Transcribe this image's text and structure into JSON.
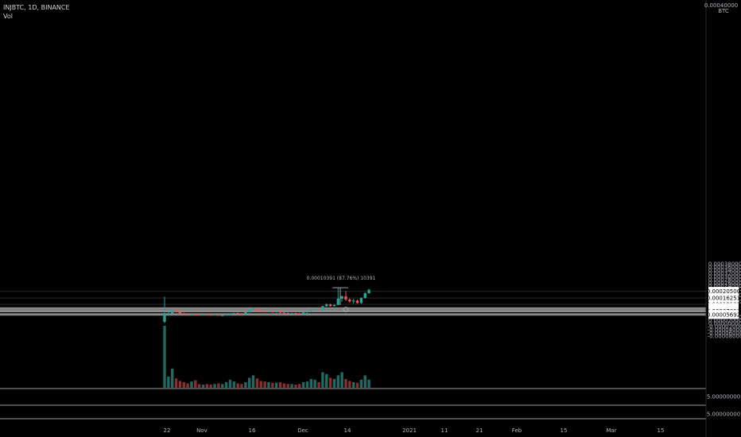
{
  "header": {
    "symbol_line": "INJBTC, 1D, BINANCE",
    "volume_label": "Vol"
  },
  "price_axis": {
    "currency": "BTC",
    "top_label": "0.00040000",
    "labels": [
      "0.00038000",
      "0.00036000",
      "0.00034000",
      "0.00032000",
      "0.00030000",
      "0.00028000",
      "0.00026000",
      "0.00024000",
      "0.00022000",
      "0.00018000",
      "0.00014000",
      "0.00004000",
      "0.00002000",
      "0.00000000",
      "-0.00002000",
      "-0.00004000",
      "-0.00006000",
      "-0.00008000"
    ],
    "tags": [
      {
        "text": "0.00020500",
        "value": 0.000205
      },
      {
        "text": "0.00016251",
        "value": 0.00016251
      },
      {
        "text": "0.00012183",
        "value": 0.00012183
      },
      {
        "text": "0.00010183",
        "value": 0.00010183
      },
      {
        "text": "0.00009447",
        "value": 9.447e-05
      },
      {
        "text": "0.00007890",
        "value": 7.89e-05
      },
      {
        "text": "0.00005692",
        "value": 5.692e-05
      }
    ],
    "lower_pane_labels": [
      "5.00000000",
      "5.00000000"
    ]
  },
  "time_axis": {
    "labels": [
      "22",
      "Nov",
      "16",
      "Dec",
      "14",
      "2021",
      "11",
      "21",
      "Feb",
      "15",
      "Mar",
      "15"
    ]
  },
  "measure": {
    "text": "0.00010391 (87.76%) 10391"
  },
  "colors": {
    "background": "#000000",
    "up": "#26a69a",
    "down": "#ef5350",
    "volume_up": "#1f6b63",
    "volume_down": "#8a2f2e",
    "level_line": "#6b6b6b",
    "tag_bg": "#ffffff"
  },
  "chart_data": {
    "type": "candlestick",
    "symbol": "INJBTC",
    "interval": "1D",
    "exchange": "BINANCE",
    "ylim": [
      -8e-05,
      0.0004
    ],
    "volume_max": 100,
    "candles": [
      {
        "o": 1e-05,
        "h": 0.000171,
        "l": 2e-06,
        "c": 6.1e-05,
        "v": 100
      },
      {
        "o": 6.1e-05,
        "h": 7.8e-05,
        "l": 6e-05,
        "c": 6.3e-05,
        "v": 18
      },
      {
        "o": 6.3e-05,
        "h": 8.9e-05,
        "l": 6e-05,
        "c": 8.4e-05,
        "v": 31
      },
      {
        "o": 8.4e-05,
        "h": 8.8e-05,
        "l": 6.8e-05,
        "c": 7.2e-05,
        "v": 15
      },
      {
        "o": 7.2e-05,
        "h": 7.5e-05,
        "l": 6.2e-05,
        "c": 6.5e-05,
        "v": 11
      },
      {
        "o": 6.5e-05,
        "h": 6.8e-05,
        "l": 5.8e-05,
        "c": 6.1e-05,
        "v": 9
      },
      {
        "o": 6.1e-05,
        "h": 6.6e-05,
        "l": 5.5e-05,
        "c": 5.7e-05,
        "v": 7
      },
      {
        "o": 5.7e-05,
        "h": 6.3e-05,
        "l": 5.4e-05,
        "c": 6e-05,
        "v": 10
      },
      {
        "o": 6e-05,
        "h": 6.5e-05,
        "l": 5.6e-05,
        "c": 5.8e-05,
        "v": 12
      },
      {
        "o": 5.8e-05,
        "h": 6.1e-05,
        "l": 5.3e-05,
        "c": 5.6e-05,
        "v": 6
      },
      {
        "o": 5.6e-05,
        "h": 6e-05,
        "l": 5.3e-05,
        "c": 5.8e-05,
        "v": 5
      },
      {
        "o": 5.8e-05,
        "h": 6.2e-05,
        "l": 5.3e-05,
        "c": 5.5e-05,
        "v": 6
      },
      {
        "o": 5.5e-05,
        "h": 5.8e-05,
        "l": 5e-05,
        "c": 5.4e-05,
        "v": 5
      },
      {
        "o": 5.4e-05,
        "h": 5.8e-05,
        "l": 5.1e-05,
        "c": 5.6e-05,
        "v": 6
      },
      {
        "o": 5.6e-05,
        "h": 5.8e-05,
        "l": 4.8e-05,
        "c": 5e-05,
        "v": 7
      },
      {
        "o": 5e-05,
        "h": 5.4e-05,
        "l": 4.5e-05,
        "c": 5.2e-05,
        "v": 6
      },
      {
        "o": 5.2e-05,
        "h": 6e-05,
        "l": 5e-05,
        "c": 5.8e-05,
        "v": 9
      },
      {
        "o": 5.8e-05,
        "h": 6.4e-05,
        "l": 5.5e-05,
        "c": 6.2e-05,
        "v": 13
      },
      {
        "o": 6.2e-05,
        "h": 6.9e-05,
        "l": 5.8e-05,
        "c": 6.6e-05,
        "v": 10
      },
      {
        "o": 6.6e-05,
        "h": 7.2e-05,
        "l": 6.2e-05,
        "c": 6.4e-05,
        "v": 7
      },
      {
        "o": 6.4e-05,
        "h": 6.6e-05,
        "l": 5.6e-05,
        "c": 5.8e-05,
        "v": 6
      },
      {
        "o": 5.8e-05,
        "h": 7.4e-05,
        "l": 5.6e-05,
        "c": 7.1e-05,
        "v": 9
      },
      {
        "o": 7.1e-05,
        "h": 9e-05,
        "l": 6.8e-05,
        "c": 8.8e-05,
        "v": 16
      },
      {
        "o": 8.8e-05,
        "h": 0.0001,
        "l": 8.2e-05,
        "c": 9.4e-05,
        "v": 20
      },
      {
        "o": 9.4e-05,
        "h": 9.6e-05,
        "l": 7.5e-05,
        "c": 8e-05,
        "v": 15
      },
      {
        "o": 8e-05,
        "h": 8.5e-05,
        "l": 7.2e-05,
        "c": 7.8e-05,
        "v": 11
      },
      {
        "o": 7.8e-05,
        "h": 8.3e-05,
        "l": 7.2e-05,
        "c": 7.5e-05,
        "v": 10
      },
      {
        "o": 7.5e-05,
        "h": 7.9e-05,
        "l": 7e-05,
        "c": 7.7e-05,
        "v": 9
      },
      {
        "o": 7.7e-05,
        "h": 8e-05,
        "l": 6.9e-05,
        "c": 7e-05,
        "v": 8
      },
      {
        "o": 7e-05,
        "h": 8.2e-05,
        "l": 6.8e-05,
        "c": 7.8e-05,
        "v": 8
      },
      {
        "o": 7.8e-05,
        "h": 8e-05,
        "l": 6.6e-05,
        "c": 6.8e-05,
        "v": 9
      },
      {
        "o": 6.8e-05,
        "h": 7.1e-05,
        "l": 6.3e-05,
        "c": 6.7e-05,
        "v": 7
      },
      {
        "o": 6.7e-05,
        "h": 7e-05,
        "l": 6.2e-05,
        "c": 6.4e-05,
        "v": 6
      },
      {
        "o": 6.4e-05,
        "h": 6.8e-05,
        "l": 6.1e-05,
        "c": 6.6e-05,
        "v": 6
      },
      {
        "o": 6.6e-05,
        "h": 6.9e-05,
        "l": 6.2e-05,
        "c": 6.4e-05,
        "v": 5
      },
      {
        "o": 6.4e-05,
        "h": 6.8e-05,
        "l": 5.8e-05,
        "c": 6e-05,
        "v": 6
      },
      {
        "o": 6e-05,
        "h": 7.3e-05,
        "l": 5.8e-05,
        "c": 7e-05,
        "v": 9
      },
      {
        "o": 7e-05,
        "h": 7.8e-05,
        "l": 6.7e-05,
        "c": 7.6e-05,
        "v": 10
      },
      {
        "o": 7.6e-05,
        "h": 8.6e-05,
        "l": 7.3e-05,
        "c": 8.3e-05,
        "v": 14
      },
      {
        "o": 8.3e-05,
        "h": 9.2e-05,
        "l": 7.8e-05,
        "c": 8.9e-05,
        "v": 13
      },
      {
        "o": 8.9e-05,
        "h": 9.6e-05,
        "l": 8.3e-05,
        "c": 8.6e-05,
        "v": 9
      },
      {
        "o": 8.6e-05,
        "h": 0.000112,
        "l": 8.4e-05,
        "c": 0.00011,
        "v": 25
      },
      {
        "o": 0.00011,
        "h": 0.000126,
        "l": 0.000106,
        "c": 0.000122,
        "v": 22
      },
      {
        "o": 0.000122,
        "h": 0.000125,
        "l": 0.000107,
        "c": 0.00011,
        "v": 16
      },
      {
        "o": 0.00011,
        "h": 0.000121,
        "l": 0.000108,
        "c": 0.000118,
        "v": 14
      },
      {
        "o": 0.000118,
        "h": 0.000228,
        "l": 0.000114,
        "c": 0.000158,
        "v": 20
      },
      {
        "o": 0.000158,
        "h": 0.000178,
        "l": 0.000138,
        "c": 0.000173,
        "v": 25
      },
      {
        "o": 0.000173,
        "h": 0.000206,
        "l": 0.000143,
        "c": 0.000153,
        "v": 14
      },
      {
        "o": 0.000153,
        "h": 0.00016,
        "l": 0.000132,
        "c": 0.00014,
        "v": 11
      },
      {
        "o": 0.00014,
        "h": 0.000157,
        "l": 0.000127,
        "c": 0.000146,
        "v": 9
      },
      {
        "o": 0.000146,
        "h": 0.000152,
        "l": 0.000126,
        "c": 0.00013,
        "v": 8
      },
      {
        "o": 0.00013,
        "h": 0.000166,
        "l": 0.000125,
        "c": 0.000162,
        "v": 13
      },
      {
        "o": 0.000162,
        "h": 0.000199,
        "l": 0.000158,
        "c": 0.000193,
        "v": 20
      },
      {
        "o": 0.000193,
        "h": 0.00022,
        "l": 0.00019,
        "c": 0.000215,
        "v": 13
      }
    ]
  }
}
